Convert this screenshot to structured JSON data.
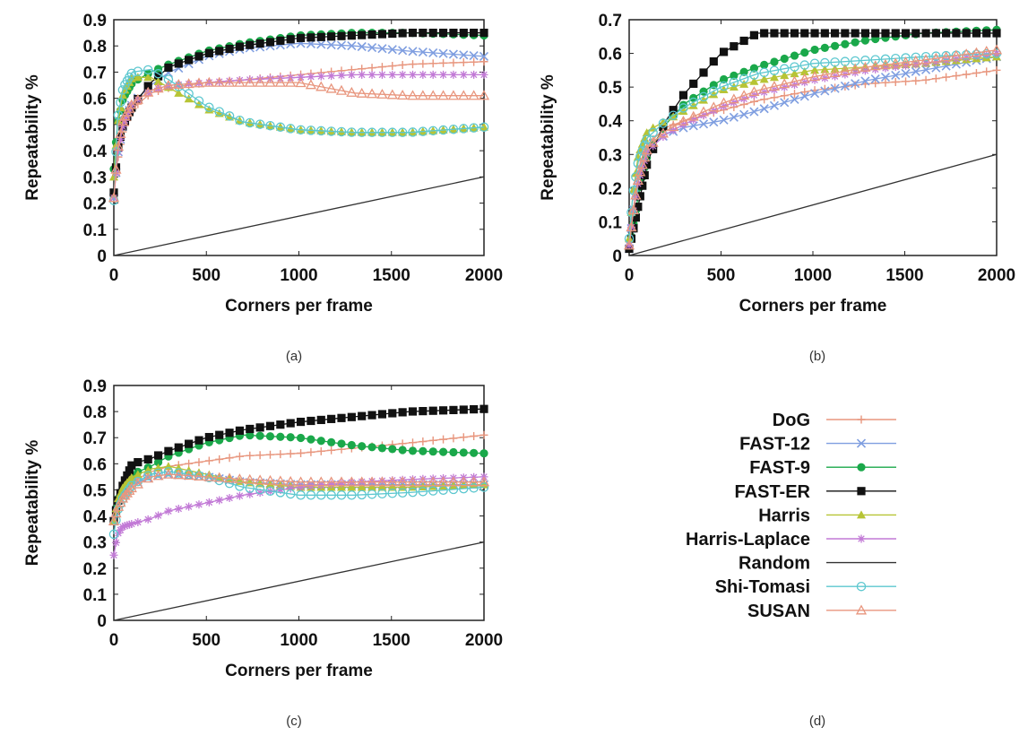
{
  "figure": {
    "captions": [
      "(a)",
      "(b)",
      "(c)",
      "(d)"
    ]
  },
  "legend": [
    {
      "name": "DoG",
      "color": "#e8967e",
      "marker": "plus"
    },
    {
      "name": "FAST-12",
      "color": "#7f9ee0",
      "marker": "x"
    },
    {
      "name": "FAST-9",
      "color": "#1aa84a",
      "marker": "circle"
    },
    {
      "name": "FAST-ER",
      "color": "#111111",
      "marker": "square"
    },
    {
      "name": "Harris",
      "color": "#b7c435",
      "marker": "triangle"
    },
    {
      "name": "Harris-Laplace",
      "color": "#c27ad6",
      "marker": "star"
    },
    {
      "name": "Random",
      "color": "#333333",
      "marker": "none"
    },
    {
      "name": "Shi-Tomasi",
      "color": "#5cc7cf",
      "marker": "circle-open"
    },
    {
      "name": "SUSAN",
      "color": "#e8967e",
      "marker": "triangle-open"
    }
  ],
  "chart_data": [
    {
      "type": "line",
      "panel": "(a)",
      "xlabel": "Corners per frame",
      "ylabel": "Repeatability %",
      "xlim": [
        0,
        2000
      ],
      "ylim": [
        0,
        0.9
      ],
      "xticks": [
        "0",
        "500",
        "1000",
        "1500",
        "2000"
      ],
      "yticks": [
        "0",
        "0.1",
        "0.2",
        "0.3",
        "0.4",
        "0.5",
        "0.6",
        "0.7",
        "0.8",
        "0.9"
      ],
      "series": [
        {
          "name": "DoG",
          "x": [
            0,
            20,
            50,
            100,
            200,
            300,
            500,
            700,
            1000,
            1300,
            1600,
            2000
          ],
          "y": [
            0.23,
            0.36,
            0.48,
            0.56,
            0.62,
            0.64,
            0.66,
            0.67,
            0.69,
            0.71,
            0.73,
            0.74
          ]
        },
        {
          "name": "FAST-12",
          "x": [
            0,
            20,
            50,
            100,
            200,
            300,
            500,
            700,
            1000,
            1300,
            1600,
            2000
          ],
          "y": [
            0.22,
            0.38,
            0.5,
            0.58,
            0.65,
            0.7,
            0.76,
            0.79,
            0.81,
            0.8,
            0.78,
            0.76
          ]
        },
        {
          "name": "FAST-9",
          "x": [
            0,
            20,
            50,
            100,
            200,
            300,
            500,
            700,
            1000,
            1300,
            1600,
            2000
          ],
          "y": [
            0.33,
            0.5,
            0.6,
            0.66,
            0.7,
            0.73,
            0.78,
            0.81,
            0.84,
            0.85,
            0.85,
            0.84
          ]
        },
        {
          "name": "FAST-ER",
          "x": [
            0,
            20,
            50,
            100,
            200,
            300,
            500,
            700,
            1000,
            1300,
            1600,
            2000
          ],
          "y": [
            0.24,
            0.4,
            0.5,
            0.57,
            0.66,
            0.72,
            0.77,
            0.8,
            0.83,
            0.84,
            0.85,
            0.85
          ]
        },
        {
          "name": "Harris",
          "x": [
            0,
            20,
            50,
            100,
            200,
            300,
            500,
            700,
            1000,
            1300,
            1600,
            2000
          ],
          "y": [
            0.3,
            0.5,
            0.62,
            0.68,
            0.68,
            0.64,
            0.56,
            0.51,
            0.48,
            0.47,
            0.47,
            0.49
          ]
        },
        {
          "name": "Harris-Laplace",
          "x": [
            0,
            20,
            50,
            100,
            200,
            300,
            500,
            700,
            1000,
            1300,
            1600,
            2000
          ],
          "y": [
            0.22,
            0.38,
            0.5,
            0.58,
            0.63,
            0.65,
            0.66,
            0.67,
            0.68,
            0.69,
            0.69,
            0.69
          ]
        },
        {
          "name": "Random",
          "x": [
            0,
            2000
          ],
          "y": [
            0,
            0.3
          ]
        },
        {
          "name": "Shi-Tomasi",
          "x": [
            0,
            20,
            50,
            100,
            200,
            300,
            500,
            700,
            1000,
            1300,
            1600,
            2000
          ],
          "y": [
            0.21,
            0.52,
            0.64,
            0.7,
            0.71,
            0.67,
            0.57,
            0.51,
            0.48,
            0.47,
            0.47,
            0.49
          ]
        },
        {
          "name": "SUSAN",
          "x": [
            0,
            20,
            50,
            100,
            200,
            300,
            500,
            700,
            1000,
            1300,
            1600,
            2000
          ],
          "y": [
            0.22,
            0.4,
            0.52,
            0.58,
            0.63,
            0.65,
            0.66,
            0.66,
            0.66,
            0.62,
            0.61,
            0.61
          ]
        }
      ]
    },
    {
      "type": "line",
      "panel": "(b)",
      "xlabel": "Corners per frame",
      "ylabel": "Repeatability %",
      "xlim": [
        0,
        2000
      ],
      "ylim": [
        0,
        0.7
      ],
      "xticks": [
        "0",
        "500",
        "1000",
        "1500",
        "2000"
      ],
      "yticks": [
        "0",
        "0.1",
        "0.2",
        "0.3",
        "0.4",
        "0.5",
        "0.6",
        "0.7"
      ],
      "series": [
        {
          "name": "DoG",
          "x": [
            0,
            20,
            50,
            100,
            200,
            300,
            500,
            700,
            1000,
            1300,
            1600,
            2000
          ],
          "y": [
            0.02,
            0.12,
            0.25,
            0.33,
            0.38,
            0.4,
            0.43,
            0.46,
            0.49,
            0.51,
            0.52,
            0.55
          ]
        },
        {
          "name": "FAST-12",
          "x": [
            0,
            20,
            50,
            100,
            200,
            300,
            500,
            700,
            1000,
            1300,
            1600,
            2000
          ],
          "y": [
            0.02,
            0.12,
            0.24,
            0.32,
            0.36,
            0.38,
            0.4,
            0.43,
            0.48,
            0.52,
            0.55,
            0.59
          ]
        },
        {
          "name": "FAST-9",
          "x": [
            0,
            20,
            50,
            100,
            200,
            300,
            500,
            700,
            1000,
            1300,
            1600,
            2000
          ],
          "y": [
            0.02,
            0.08,
            0.18,
            0.3,
            0.39,
            0.45,
            0.52,
            0.56,
            0.61,
            0.64,
            0.66,
            0.67
          ]
        },
        {
          "name": "FAST-ER",
          "x": [
            0,
            20,
            50,
            100,
            200,
            300,
            500,
            700,
            1000,
            1300,
            1600,
            2000
          ],
          "y": [
            0.02,
            0.07,
            0.15,
            0.28,
            0.4,
            0.48,
            0.6,
            0.66,
            0.66,
            0.66,
            0.66,
            0.66
          ]
        },
        {
          "name": "Harris",
          "x": [
            0,
            20,
            50,
            100,
            200,
            300,
            500,
            700,
            1000,
            1300,
            1600,
            2000
          ],
          "y": [
            0.05,
            0.18,
            0.3,
            0.37,
            0.4,
            0.43,
            0.49,
            0.52,
            0.55,
            0.56,
            0.57,
            0.59
          ]
        },
        {
          "name": "Harris-Laplace",
          "x": [
            0,
            20,
            50,
            100,
            200,
            300,
            500,
            700,
            1000,
            1300,
            1600,
            2000
          ],
          "y": [
            0.03,
            0.12,
            0.22,
            0.31,
            0.36,
            0.39,
            0.44,
            0.48,
            0.52,
            0.55,
            0.57,
            0.6
          ]
        },
        {
          "name": "Random",
          "x": [
            0,
            2000
          ],
          "y": [
            0,
            0.3
          ]
        },
        {
          "name": "Shi-Tomasi",
          "x": [
            0,
            20,
            50,
            100,
            200,
            300,
            500,
            700,
            1000,
            1300,
            1600,
            2000
          ],
          "y": [
            0.05,
            0.18,
            0.28,
            0.35,
            0.4,
            0.44,
            0.5,
            0.54,
            0.57,
            0.58,
            0.59,
            0.6
          ]
        },
        {
          "name": "SUSAN",
          "x": [
            0,
            20,
            50,
            100,
            200,
            300,
            500,
            700,
            1000,
            1300,
            1600,
            2000
          ],
          "y": [
            0.03,
            0.12,
            0.23,
            0.32,
            0.37,
            0.4,
            0.45,
            0.49,
            0.53,
            0.56,
            0.58,
            0.61
          ]
        }
      ]
    },
    {
      "type": "line",
      "panel": "(c)",
      "xlabel": "Corners per frame",
      "ylabel": "Repeatability %",
      "xlim": [
        0,
        2000
      ],
      "ylim": [
        0,
        0.9
      ],
      "xticks": [
        "0",
        "500",
        "1000",
        "1500",
        "2000"
      ],
      "yticks": [
        "0",
        "0.1",
        "0.2",
        "0.3",
        "0.4",
        "0.5",
        "0.6",
        "0.7",
        "0.8",
        "0.9"
      ],
      "series": [
        {
          "name": "DoG",
          "x": [
            0,
            20,
            50,
            100,
            200,
            300,
            500,
            700,
            1000,
            1300,
            1600,
            2000
          ],
          "y": [
            0.38,
            0.44,
            0.49,
            0.53,
            0.57,
            0.59,
            0.61,
            0.63,
            0.64,
            0.66,
            0.68,
            0.71
          ]
        },
        {
          "name": "FAST-12",
          "x": [
            0,
            20,
            50,
            100,
            200,
            300,
            500,
            700,
            1000,
            1300,
            1600,
            2000
          ],
          "y": [
            0.38,
            0.44,
            0.48,
            0.52,
            0.55,
            0.56,
            0.55,
            0.53,
            0.52,
            0.52,
            0.52,
            0.52
          ]
        },
        {
          "name": "FAST-9",
          "x": [
            0,
            20,
            50,
            100,
            200,
            300,
            500,
            700,
            1000,
            1300,
            1600,
            2000
          ],
          "y": [
            0.38,
            0.46,
            0.51,
            0.56,
            0.59,
            0.63,
            0.68,
            0.71,
            0.7,
            0.67,
            0.65,
            0.64
          ]
        },
        {
          "name": "FAST-ER",
          "x": [
            0,
            20,
            50,
            100,
            200,
            300,
            500,
            700,
            1000,
            1300,
            1600,
            2000
          ],
          "y": [
            0.38,
            0.45,
            0.52,
            0.6,
            0.62,
            0.65,
            0.7,
            0.73,
            0.76,
            0.78,
            0.8,
            0.81
          ]
        },
        {
          "name": "Harris",
          "x": [
            0,
            20,
            50,
            100,
            200,
            300,
            500,
            700,
            1000,
            1300,
            1600,
            2000
          ],
          "y": [
            0.38,
            0.46,
            0.51,
            0.55,
            0.58,
            0.59,
            0.56,
            0.53,
            0.51,
            0.51,
            0.51,
            0.52
          ]
        },
        {
          "name": "Harris-Laplace",
          "x": [
            0,
            20,
            50,
            100,
            200,
            300,
            500,
            700,
            1000,
            1300,
            1600,
            2000
          ],
          "y": [
            0.25,
            0.33,
            0.36,
            0.37,
            0.39,
            0.42,
            0.45,
            0.48,
            0.51,
            0.53,
            0.54,
            0.55
          ]
        },
        {
          "name": "Random",
          "x": [
            0,
            2000
          ],
          "y": [
            0,
            0.3
          ]
        },
        {
          "name": "Shi-Tomasi",
          "x": [
            0,
            20,
            50,
            100,
            200,
            300,
            500,
            700,
            1000,
            1300,
            1600,
            2000
          ],
          "y": [
            0.33,
            0.42,
            0.47,
            0.52,
            0.56,
            0.57,
            0.55,
            0.51,
            0.48,
            0.48,
            0.49,
            0.51
          ]
        },
        {
          "name": "SUSAN",
          "x": [
            0,
            20,
            50,
            100,
            200,
            300,
            500,
            700,
            1000,
            1300,
            1600,
            2000
          ],
          "y": [
            0.38,
            0.43,
            0.47,
            0.51,
            0.55,
            0.56,
            0.55,
            0.54,
            0.53,
            0.53,
            0.53,
            0.53
          ]
        }
      ]
    }
  ]
}
